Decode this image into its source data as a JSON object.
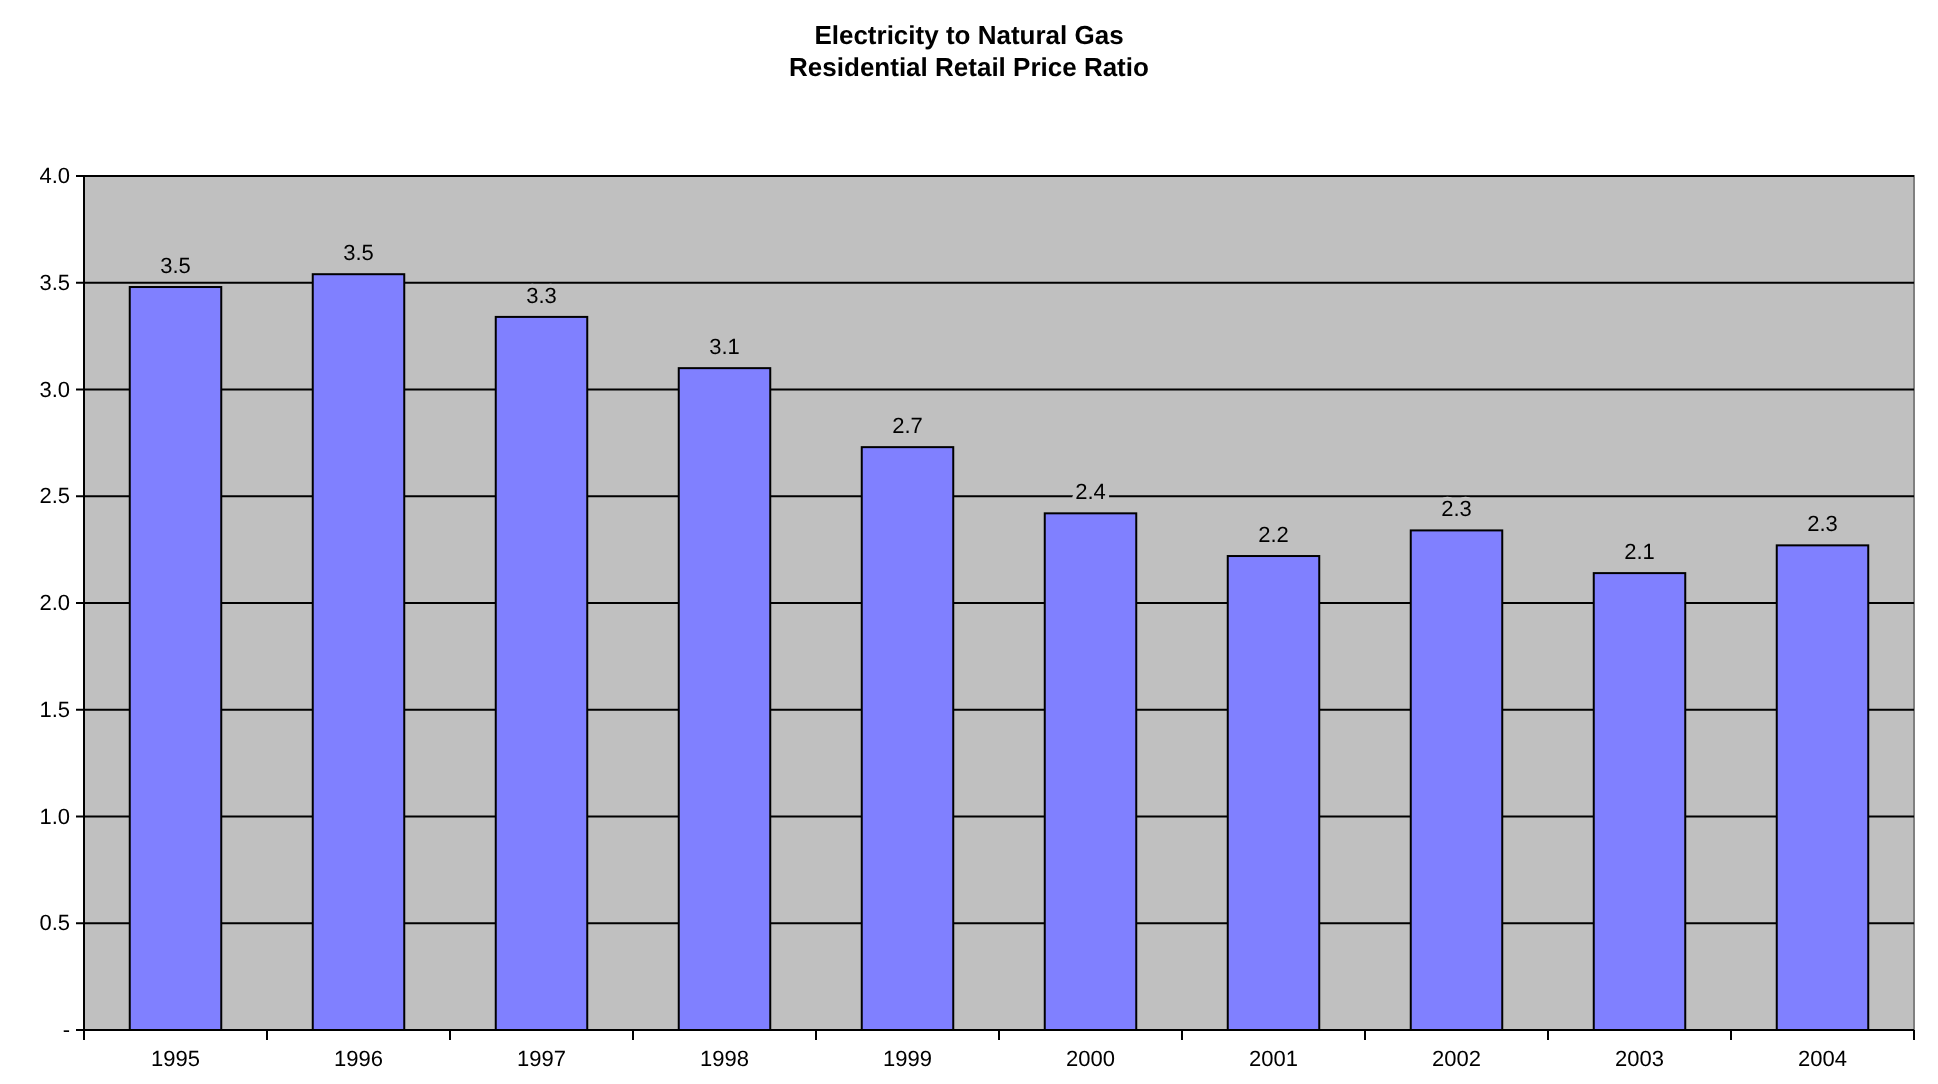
{
  "chart_data": {
    "type": "bar",
    "title": "Electricity to Natural Gas",
    "subtitle": "Residential Retail Price Ratio",
    "categories": [
      "1995",
      "1996",
      "1997",
      "1998",
      "1999",
      "2000",
      "2001",
      "2002",
      "2003",
      "2004"
    ],
    "values": [
      3.48,
      3.54,
      3.34,
      3.1,
      2.73,
      2.42,
      2.22,
      2.34,
      2.14,
      2.27
    ],
    "value_labels": [
      "3.5",
      "3.5",
      "3.3",
      "3.1",
      "2.7",
      "2.4",
      "2.2",
      "2.3",
      "2.1",
      "2.3"
    ],
    "color": "#8080ff",
    "ylim": [
      0,
      4
    ],
    "yticks": [
      {
        "value": 0,
        "label": "-"
      },
      {
        "value": 0.5,
        "label": "0.5"
      },
      {
        "value": 1,
        "label": "1.0"
      },
      {
        "value": 1.5,
        "label": "1.5"
      },
      {
        "value": 2,
        "label": "2.0"
      },
      {
        "value": 2.5,
        "label": "2.5"
      },
      {
        "value": 3,
        "label": "3.0"
      },
      {
        "value": 3.5,
        "label": "3.5"
      },
      {
        "value": 4,
        "label": "4.0"
      }
    ],
    "grid": "y"
  }
}
